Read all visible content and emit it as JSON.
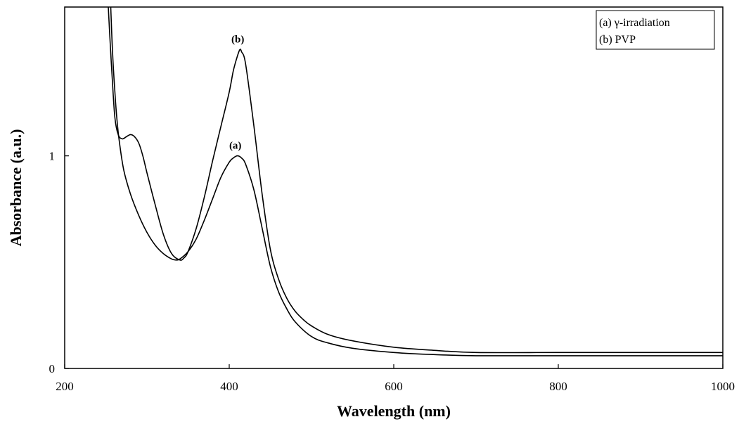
{
  "chart_data": {
    "type": "line",
    "xlabel": "Wavelength (nm)",
    "ylabel": "Absorbance (a.u.)",
    "xlim": [
      200,
      1000
    ],
    "ylim": [
      0,
      1.7
    ],
    "x_ticks": [
      "200",
      "400",
      "600",
      "800",
      "1000"
    ],
    "y_ticks": [
      {
        "value": 0,
        "label": "0"
      },
      {
        "value": 1,
        "label": "1"
      }
    ],
    "grid": false,
    "legend": {
      "position": "top-right",
      "entries": [
        "(a) γ-irradiation",
        "(b) PVP"
      ]
    },
    "colors": {
      "line": "#000000",
      "axis": "#000000"
    },
    "series": [
      {
        "name": "(a) γ-irradiation",
        "annotation": "(a)",
        "x": [
          256,
          258,
          261,
          264,
          267,
          272,
          280,
          290,
          300,
          310,
          320,
          330,
          335,
          340,
          350,
          360,
          370,
          380,
          390,
          400,
          405,
          410,
          415,
          420,
          430,
          440,
          450,
          460,
          470,
          480,
          500,
          520,
          550,
          600,
          650,
          700,
          800,
          900,
          1000
        ],
        "y": [
          1.7,
          1.5,
          1.3,
          1.15,
          1.05,
          0.93,
          0.82,
          0.72,
          0.64,
          0.58,
          0.54,
          0.515,
          0.51,
          0.515,
          0.55,
          0.61,
          0.7,
          0.8,
          0.9,
          0.97,
          0.99,
          1.0,
          0.99,
          0.96,
          0.84,
          0.66,
          0.48,
          0.36,
          0.28,
          0.22,
          0.15,
          0.12,
          0.095,
          0.075,
          0.065,
          0.06,
          0.06,
          0.06,
          0.06
        ]
      },
      {
        "name": "(b) PVP",
        "annotation": "(b)",
        "x": [
          253,
          255,
          258,
          261,
          265,
          270,
          275,
          280,
          285,
          290,
          295,
          300,
          310,
          320,
          330,
          340,
          345,
          350,
          360,
          370,
          380,
          390,
          400,
          405,
          410,
          413,
          415,
          420,
          430,
          440,
          450,
          460,
          470,
          480,
          490,
          500,
          520,
          550,
          600,
          650,
          700,
          800,
          900,
          1000
        ],
        "y": [
          1.7,
          1.55,
          1.35,
          1.18,
          1.1,
          1.08,
          1.09,
          1.1,
          1.09,
          1.06,
          1.0,
          0.92,
          0.77,
          0.63,
          0.54,
          0.51,
          0.52,
          0.55,
          0.66,
          0.81,
          0.98,
          1.14,
          1.3,
          1.4,
          1.47,
          1.5,
          1.49,
          1.43,
          1.14,
          0.82,
          0.56,
          0.42,
          0.33,
          0.27,
          0.23,
          0.2,
          0.16,
          0.13,
          0.1,
          0.085,
          0.075,
          0.075,
          0.075,
          0.075
        ]
      }
    ]
  }
}
